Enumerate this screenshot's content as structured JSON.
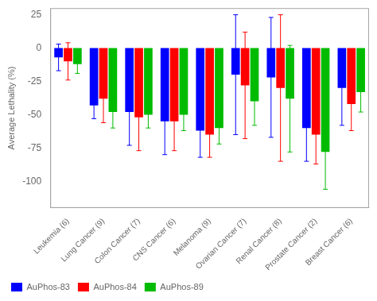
{
  "chart_data": {
    "type": "bar",
    "categories": [
      "Leukemia (6)",
      "Lung Cancer (9)",
      "Colon Cancer (7)",
      "CNS Cancer (6)",
      "Melanoma (9)",
      "Ovarian Cancer (7)",
      "Renal Cancer (8)",
      "Prostate Cancer (2)",
      "Breast Cancer (6)"
    ],
    "series": [
      {
        "name": "AuPhos-83",
        "color": "#0000FF",
        "values": [
          -7,
          -43,
          -48,
          -55,
          -62,
          -20,
          -22,
          -60,
          -30
        ],
        "errors": [
          10,
          10,
          25,
          25,
          20,
          45,
          45,
          25,
          28
        ]
      },
      {
        "name": "AuPhos-84",
        "color": "#FF0000",
        "values": [
          -10,
          -38,
          -52,
          -55,
          -65,
          -28,
          -30,
          -65,
          -42
        ],
        "errors": [
          14,
          18,
          25,
          22,
          17,
          40,
          55,
          22,
          20
        ]
      },
      {
        "name": "AuPhos-89",
        "color": "#00BB00",
        "values": [
          -12,
          -48,
          -50,
          -50,
          -60,
          -40,
          -38,
          -78,
          -33
        ],
        "errors": [
          7,
          12,
          10,
          12,
          12,
          18,
          40,
          28,
          15
        ]
      }
    ],
    "ylabel": "Average Lethality (%)",
    "ylim": [
      -120,
      30
    ],
    "yticks": [
      25,
      0,
      -25,
      -50,
      -75,
      -100
    ],
    "grid": false,
    "legend": "lower left"
  }
}
